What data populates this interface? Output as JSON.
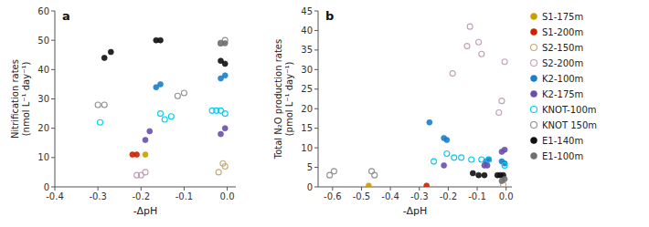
{
  "chart_data": [
    {
      "type": "scatter",
      "title": "a",
      "xlabel": "-ΔpH",
      "ylabel": "Nitrification rates\n(nmol L⁻¹ day⁻¹)",
      "xlim": [
        -0.4,
        0.02
      ],
      "ylim": [
        0,
        60
      ],
      "xticks": [
        -0.4,
        -0.3,
        -0.2,
        -0.1,
        {
          "value": 0.0,
          "label": "0.0"
        }
      ],
      "yticks": [
        0,
        10,
        20,
        30,
        40,
        50,
        60
      ],
      "series": [
        {
          "name": "S1-175m",
          "color": "#C8A000",
          "marker": "circle",
          "x": [
            -0.19
          ],
          "values": [
            11
          ]
        },
        {
          "name": "S1-200m",
          "color": "#CC2200",
          "marker": "circle",
          "x": [
            -0.21,
            -0.22
          ],
          "values": [
            11,
            11
          ]
        },
        {
          "name": "S2-150m",
          "color": "#C8A878",
          "marker": "open-circle",
          "x": [
            -0.005,
            -0.01,
            -0.02
          ],
          "values": [
            7,
            8,
            5
          ]
        },
        {
          "name": "S2-200m",
          "color": "#C0A0B8",
          "marker": "open-circle",
          "x": [
            -0.19,
            -0.2,
            -0.21
          ],
          "values": [
            5,
            4,
            4
          ]
        },
        {
          "name": "K2-100m",
          "color": "#1A7FCC",
          "marker": "circle",
          "x": [
            -0.155,
            -0.165,
            -0.005,
            -0.015
          ],
          "values": [
            35,
            34,
            38,
            37
          ]
        },
        {
          "name": "K2-175m",
          "color": "#6A4FAA",
          "marker": "circle",
          "x": [
            -0.18,
            -0.19,
            -0.005,
            -0.015
          ],
          "values": [
            19,
            16,
            20,
            18
          ]
        },
        {
          "name": "KNOT-100m",
          "color": "#00CCEE",
          "marker": "open-circle",
          "x": [
            -0.295,
            -0.13,
            -0.145,
            -0.155,
            -0.005,
            -0.015,
            -0.025,
            -0.035
          ],
          "values": [
            22,
            24,
            23,
            25,
            25,
            26,
            26,
            26
          ]
        },
        {
          "name": "KNOT 150m",
          "color": "#909090",
          "marker": "open-circle",
          "x": [
            -0.285,
            -0.3,
            -0.1,
            -0.115,
            -0.005,
            -0.015
          ],
          "values": [
            28,
            28,
            32,
            31,
            50,
            49
          ]
        },
        {
          "name": "E1-140m",
          "color": "#101010",
          "marker": "circle",
          "x": [
            -0.27,
            -0.285,
            -0.155,
            -0.165,
            -0.005,
            -0.015
          ],
          "values": [
            46,
            44,
            50,
            50,
            42,
            43
          ]
        },
        {
          "name": "E1-100m",
          "color": "#707070",
          "marker": "circle",
          "x": [
            -0.005,
            -0.015
          ],
          "values": [
            49,
            49
          ]
        }
      ]
    },
    {
      "type": "scatter",
      "title": "b",
      "xlabel": "-ΔpH",
      "ylabel": "Total N₂O production rates\n(pmol L⁻¹ day⁻¹)",
      "xlim": [
        -0.65,
        0.02
      ],
      "ylim": [
        0,
        45
      ],
      "xticks": [
        -0.6,
        -0.5,
        -0.4,
        -0.3,
        -0.2,
        -0.1,
        {
          "value": 0.0,
          "label": "0.0"
        }
      ],
      "yticks": [
        0,
        5,
        10,
        15,
        20,
        25,
        30,
        35,
        40,
        45
      ],
      "legend": "right",
      "series": [
        {
          "name": "S1-175m",
          "color": "#C8A000",
          "marker": "circle",
          "x": [
            -0.475
          ],
          "values": [
            0.3
          ]
        },
        {
          "name": "S1-200m",
          "color": "#CC2200",
          "marker": "circle",
          "x": [
            -0.275
          ],
          "values": [
            0.3
          ]
        },
        {
          "name": "S2-150m",
          "color": "#C8A878",
          "marker": "open-circle",
          "x": [
            -0.01
          ],
          "values": [
            0.5
          ]
        },
        {
          "name": "S2-200m",
          "color": "#C0A0B8",
          "marker": "open-circle",
          "x": [
            -0.185,
            -0.135,
            -0.125,
            -0.095,
            -0.085,
            -0.005,
            -0.015,
            -0.025
          ],
          "values": [
            29,
            36,
            41,
            37,
            34,
            32,
            22,
            19
          ]
        },
        {
          "name": "K2-100m",
          "color": "#1A7FCC",
          "marker": "circle",
          "x": [
            -0.265,
            -0.215,
            -0.205,
            -0.07,
            -0.06,
            -0.005,
            -0.015
          ],
          "values": [
            16.5,
            12.5,
            12,
            6.5,
            7,
            6,
            6.5
          ]
        },
        {
          "name": "K2-175m",
          "color": "#6A4FAA",
          "marker": "circle",
          "x": [
            -0.215,
            -0.075,
            -0.065,
            -0.005,
            -0.015
          ],
          "values": [
            5.5,
            5.5,
            5.5,
            9.5,
            9
          ]
        },
        {
          "name": "KNOT-100m",
          "color": "#00CCEE",
          "marker": "open-circle",
          "x": [
            -0.25,
            -0.205,
            -0.18,
            -0.155,
            -0.12,
            -0.085,
            -0.06,
            -0.005
          ],
          "values": [
            6.5,
            8.5,
            7.5,
            7.5,
            7,
            7,
            7,
            5.5
          ]
        },
        {
          "name": "KNOT 150m",
          "color": "#909090",
          "marker": "open-circle",
          "x": [
            -0.595,
            -0.61,
            -0.455,
            -0.465
          ],
          "values": [
            4,
            3,
            3,
            4
          ]
        },
        {
          "name": "E1-140m",
          "color": "#101010",
          "marker": "circle",
          "x": [
            -0.115,
            -0.095,
            -0.075,
            -0.03,
            -0.01,
            -0.02
          ],
          "values": [
            3.5,
            3,
            3,
            3,
            3,
            3
          ]
        },
        {
          "name": "E1-100m",
          "color": "#707070",
          "marker": "circle",
          "x": [
            -0.005,
            -0.015
          ],
          "values": [
            2,
            1.5
          ]
        }
      ]
    }
  ]
}
